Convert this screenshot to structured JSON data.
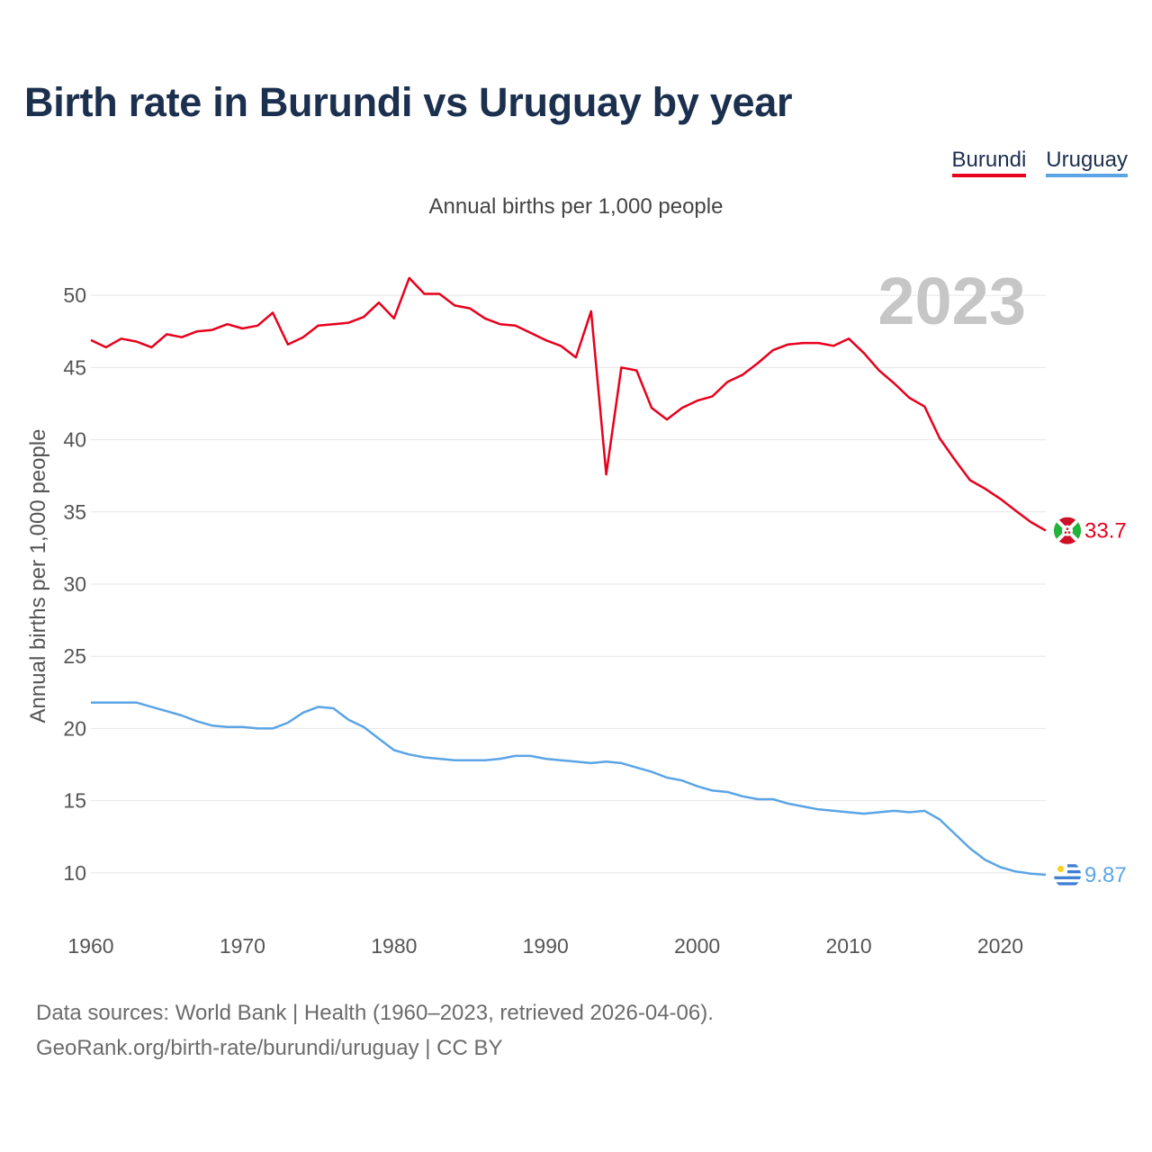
{
  "title": "Birth rate in Burundi vs Uruguay by year",
  "subtitle": "Annual births per 1,000 people",
  "year_overlay": "2023",
  "footer": {
    "line1": "Data sources: World Bank | Health (1960–2023, retrieved 2026-04-06).",
    "line2": "GeoRank.org/birth-rate/burundi/uruguay | CC BY"
  },
  "chart_data": {
    "type": "line",
    "title": "Birth rate in Burundi vs Uruguay by year",
    "subtitle": "Annual births per 1,000 people",
    "xlabel": "",
    "ylabel": "Annual births per 1,000 people",
    "xlim": [
      1960,
      2023
    ],
    "ylim": [
      7,
      53
    ],
    "yticks": [
      10,
      15,
      20,
      25,
      30,
      35,
      40,
      45,
      50
    ],
    "xticks": [
      1960,
      1970,
      1980,
      1990,
      2000,
      2010,
      2020
    ],
    "grid": true,
    "legend_position": "top-right",
    "x": [
      1960,
      1961,
      1962,
      1963,
      1964,
      1965,
      1966,
      1967,
      1968,
      1969,
      1970,
      1971,
      1972,
      1973,
      1974,
      1975,
      1976,
      1977,
      1978,
      1979,
      1980,
      1981,
      1982,
      1983,
      1984,
      1985,
      1986,
      1987,
      1988,
      1989,
      1990,
      1991,
      1992,
      1993,
      1994,
      1995,
      1996,
      1997,
      1998,
      1999,
      2000,
      2001,
      2002,
      2003,
      2004,
      2005,
      2006,
      2007,
      2008,
      2009,
      2010,
      2011,
      2012,
      2013,
      2014,
      2015,
      2016,
      2017,
      2018,
      2019,
      2020,
      2021,
      2022,
      2023
    ],
    "series": [
      {
        "name": "Burundi",
        "color": "#e8001c",
        "end_label": "33.7",
        "flag": "burundi",
        "values": [
          46.9,
          46.4,
          47.0,
          46.8,
          46.4,
          47.3,
          47.1,
          47.5,
          47.6,
          48.0,
          47.7,
          47.9,
          48.8,
          46.6,
          47.1,
          47.9,
          48.0,
          48.1,
          48.5,
          49.5,
          48.4,
          51.2,
          50.1,
          50.1,
          49.3,
          49.1,
          48.4,
          48.0,
          47.9,
          47.4,
          46.9,
          46.5,
          45.7,
          48.9,
          37.6,
          45.0,
          44.8,
          42.2,
          41.4,
          42.2,
          42.7,
          43.0,
          44.0,
          44.5,
          45.3,
          46.2,
          46.6,
          46.7,
          46.7,
          46.5,
          47.0,
          46.0,
          44.8,
          43.9,
          42.9,
          42.3,
          40.1,
          38.6,
          37.2,
          36.6,
          35.9,
          35.1,
          34.3,
          33.7
        ]
      },
      {
        "name": "Uruguay",
        "color": "#5ba4e5",
        "end_label": "9.87",
        "flag": "uruguay",
        "values": [
          21.8,
          21.8,
          21.8,
          21.8,
          21.5,
          21.2,
          20.9,
          20.5,
          20.2,
          20.1,
          20.1,
          20.0,
          20.0,
          20.4,
          21.1,
          21.5,
          21.4,
          20.6,
          20.1,
          19.3,
          18.5,
          18.2,
          18.0,
          17.9,
          17.8,
          17.8,
          17.8,
          17.9,
          18.1,
          18.1,
          17.9,
          17.8,
          17.7,
          17.6,
          17.7,
          17.6,
          17.3,
          17.0,
          16.6,
          16.4,
          16.0,
          15.7,
          15.6,
          15.3,
          15.1,
          15.1,
          14.8,
          14.6,
          14.4,
          14.3,
          14.2,
          14.1,
          14.2,
          14.3,
          14.2,
          14.3,
          13.7,
          12.7,
          11.7,
          10.9,
          10.4,
          10.1,
          9.95,
          9.87
        ]
      }
    ]
  }
}
